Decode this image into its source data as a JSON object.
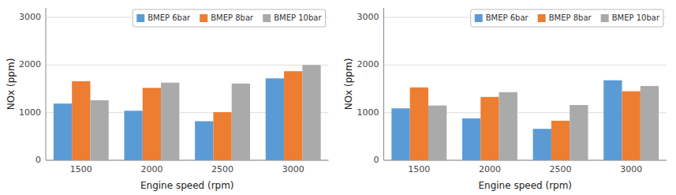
{
  "chart_data": [
    {
      "type": "bar",
      "categories": [
        "1500",
        "2000",
        "2500",
        "3000"
      ],
      "series": [
        {
          "name": "BMEP 6bar",
          "color": "#5B9BD5",
          "values": [
            1190,
            1040,
            820,
            1720
          ]
        },
        {
          "name": "BMEP 8bar",
          "color": "#ED7D31",
          "values": [
            1660,
            1520,
            1010,
            1870
          ]
        },
        {
          "name": "BMEP 10bar",
          "color": "#AAAAAA",
          "values": [
            1260,
            1630,
            1610,
            2000
          ]
        }
      ],
      "xlabel": "Engine speed (rpm)",
      "ylabel": "NOx (ppm)",
      "ylim": [
        0,
        3200
      ],
      "yticks": [
        0,
        1000,
        2000,
        3000
      ],
      "grid": true,
      "legend": "upper right"
    },
    {
      "type": "bar",
      "categories": [
        "1500",
        "2000",
        "2500",
        "3000"
      ],
      "series": [
        {
          "name": "BMEP 6bar",
          "color": "#5B9BD5",
          "values": [
            1090,
            880,
            660,
            1680
          ]
        },
        {
          "name": "BMEP 8bar",
          "color": "#ED7D31",
          "values": [
            1530,
            1330,
            830,
            1450
          ]
        },
        {
          "name": "BMEP 10bar",
          "color": "#AAAAAA",
          "values": [
            1150,
            1430,
            1160,
            1560
          ]
        }
      ],
      "xlabel": "Engine speed (rpm)",
      "ylabel": "NOx (ppm)",
      "ylim": [
        0,
        3200
      ],
      "yticks": [
        0,
        1000,
        2000,
        3000
      ],
      "grid": true,
      "legend": "upper right"
    }
  ]
}
